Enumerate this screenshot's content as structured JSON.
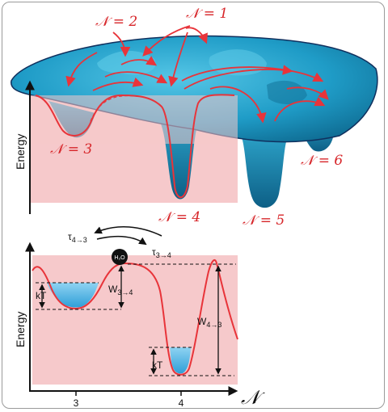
{
  "top_panel": {
    "y_axis_label": "Energy",
    "state_labels": {
      "n1": "𝒩 = 1",
      "n2": "𝒩 = 2",
      "n3": "𝒩 = 3",
      "n4": "𝒩 = 4",
      "n5": "𝒩 = 5",
      "n6": "𝒩 = 6"
    }
  },
  "bottom_panel": {
    "y_axis_label": "Energy",
    "x_axis_symbol": "𝒩",
    "x_ticks": [
      "3",
      "4"
    ],
    "rate_forward": "τ",
    "rate_forward_sub": "4→3",
    "rate_backward": "τ",
    "rate_backward_sub": "3→4",
    "molecule": "H₂O",
    "barrier_small": "W",
    "barrier_small_sub": "3→4",
    "barrier_large": "W",
    "barrier_large_sub": "4→3",
    "thermal_left": "kT",
    "thermal_right": "kT"
  },
  "colors": {
    "surface": "#2aa9cf",
    "curve": "#e8343a",
    "shade": "#f6c9cb",
    "water": "#4fb6e6"
  }
}
